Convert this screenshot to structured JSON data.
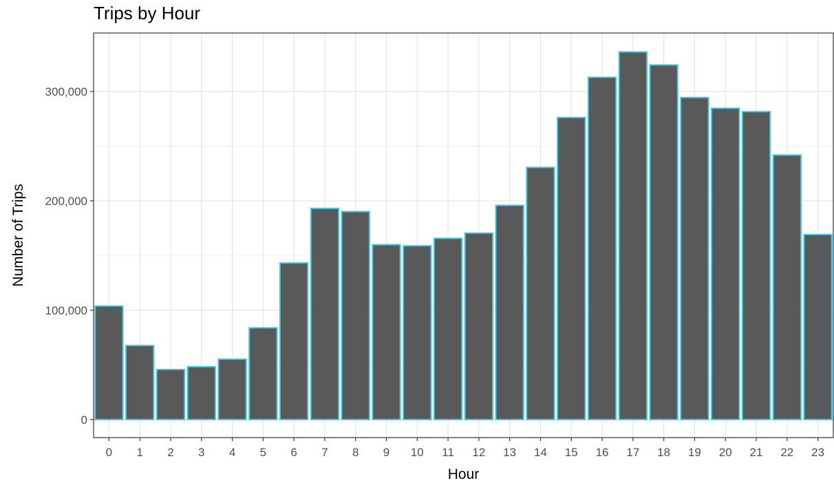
{
  "chart_data": {
    "type": "bar",
    "title": "Trips by Hour",
    "xlabel": "Hour",
    "ylabel": "Number of Trips",
    "categories": [
      "0",
      "1",
      "2",
      "3",
      "4",
      "5",
      "6",
      "7",
      "8",
      "9",
      "10",
      "11",
      "12",
      "13",
      "14",
      "15",
      "16",
      "17",
      "18",
      "19",
      "20",
      "21",
      "22",
      "23"
    ],
    "values": [
      103800,
      67700,
      45800,
      48300,
      55200,
      83900,
      143200,
      193100,
      190200,
      159900,
      158900,
      165700,
      170500,
      195900,
      230600,
      276200,
      313000,
      336200,
      324300,
      294500,
      284700,
      281600,
      241900,
      169200
    ],
    "y_ticks": [
      0,
      100000,
      200000,
      300000
    ],
    "y_tick_labels": [
      "0",
      "100,000",
      "200,000",
      "300,000"
    ],
    "ylim": [
      -16500,
      353500
    ],
    "grid": true,
    "legend": "none",
    "colors": {
      "bar_fill": "#595959",
      "bar_outline": "#3fc8e6",
      "grid_major": "#e4e4e4",
      "grid_minor": "#f2f2f2",
      "panel_border": "#333333",
      "tick_label": "#4d4d4d",
      "axis_title": "#000000"
    }
  }
}
